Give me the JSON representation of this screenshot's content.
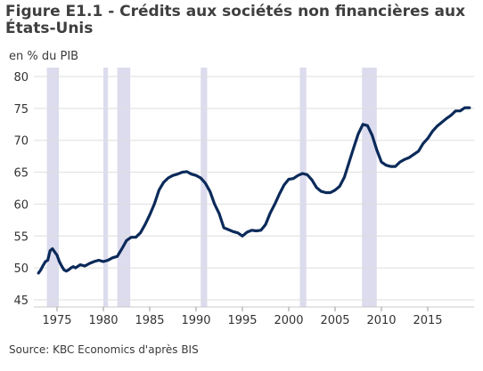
{
  "chart_data": {
    "type": "line",
    "title": "Figure E1.1 - Crédits aux sociétés non financières aux États-Unis",
    "subtitle": "en % du PIB",
    "source": "Source: KBC Economics d'après BIS",
    "xlabel": "",
    "ylabel": "",
    "xlim": [
      1972.5,
      2020.0
    ],
    "ylim": [
      45,
      80
    ],
    "x_ticks": [
      1975,
      1980,
      1985,
      1990,
      1995,
      2000,
      2005,
      2010,
      2015
    ],
    "x_tick_labels": [
      "1975",
      "1980",
      "1985",
      "1990",
      "1995",
      "2000",
      "2005",
      "2010",
      "2015"
    ],
    "y_ticks": [
      45,
      50,
      55,
      60,
      65,
      70,
      75,
      80
    ],
    "y_tick_labels": [
      "45",
      "50",
      "55",
      "60",
      "65",
      "70",
      "75",
      "80"
    ],
    "grid": true,
    "line_color": "#0b2a5a",
    "recession_color": "#dcdcee",
    "recessions": [
      {
        "start": 1973.9,
        "end": 1975.2
      },
      {
        "start": 1980.0,
        "end": 1980.5
      },
      {
        "start": 1981.5,
        "end": 1982.9
      },
      {
        "start": 1990.5,
        "end": 1991.2
      },
      {
        "start": 2001.2,
        "end": 2001.9
      },
      {
        "start": 2007.9,
        "end": 2009.5
      }
    ],
    "series": [
      {
        "x": [
          1973.0,
          1973.25,
          1973.5,
          1973.75,
          1974.0,
          1974.25,
          1974.5,
          1974.75,
          1975.0,
          1975.25,
          1975.5,
          1975.75,
          1976.0,
          1976.25,
          1976.5,
          1976.75,
          1977.0,
          1977.5,
          1978.0,
          1978.5,
          1979.0,
          1979.5,
          1980.0,
          1980.5,
          1981.0,
          1981.5,
          1982.0,
          1982.5,
          1983.0,
          1983.5,
          1984.0,
          1984.5,
          1985.0,
          1985.5,
          1986.0,
          1986.5,
          1987.0,
          1987.5,
          1988.0,
          1988.5,
          1989.0,
          1989.5,
          1990.0,
          1990.5,
          1991.0,
          1991.5,
          1992.0,
          1992.5,
          1993.0,
          1993.5,
          1994.0,
          1994.5,
          1995.0,
          1995.5,
          1996.0,
          1996.5,
          1997.0,
          1997.5,
          1998.0,
          1998.5,
          1999.0,
          1999.5,
          2000.0,
          2000.5,
          2001.0,
          2001.5,
          2002.0,
          2002.5,
          2003.0,
          2003.5,
          2004.0,
          2004.5,
          2005.0,
          2005.5,
          2006.0,
          2006.5,
          2007.0,
          2007.5,
          2008.0,
          2008.5,
          2009.0,
          2009.5,
          2010.0,
          2010.5,
          2011.0,
          2011.5,
          2012.0,
          2012.5,
          2013.0,
          2013.5,
          2014.0,
          2014.5,
          2015.0,
          2015.5,
          2016.0,
          2016.5,
          2017.0,
          2017.5,
          2018.0,
          2018.5,
          2019.0,
          2019.5
        ],
        "values": [
          49.2,
          49.7,
          50.4,
          51.0,
          51.2,
          52.7,
          53.0,
          52.5,
          52.0,
          51.0,
          50.3,
          49.7,
          49.5,
          49.7,
          50.0,
          50.2,
          50.0,
          50.5,
          50.3,
          50.7,
          51.0,
          51.2,
          51.0,
          51.2,
          51.6,
          51.8,
          53.0,
          54.3,
          54.8,
          54.8,
          55.5,
          56.8,
          58.3,
          60.0,
          62.2,
          63.4,
          64.1,
          64.5,
          64.7,
          65.0,
          65.1,
          64.7,
          64.5,
          64.1,
          63.3,
          62.0,
          60.0,
          58.5,
          56.3,
          56.0,
          55.7,
          55.5,
          55.0,
          55.6,
          55.9,
          55.8,
          55.9,
          56.8,
          58.6,
          60.0,
          61.6,
          63.0,
          63.9,
          64.0,
          64.5,
          64.8,
          64.6,
          63.8,
          62.6,
          62.0,
          61.8,
          61.8,
          62.2,
          62.8,
          64.2,
          66.5,
          68.8,
          71.0,
          72.5,
          72.3,
          70.8,
          68.5,
          66.6,
          66.1,
          65.9,
          65.9,
          66.6,
          67.0,
          67.3,
          67.8,
          68.3,
          69.5,
          70.3,
          71.4,
          72.2,
          72.8,
          73.4,
          73.9,
          74.6,
          74.6,
          75.1,
          75.1
        ]
      }
    ]
  }
}
